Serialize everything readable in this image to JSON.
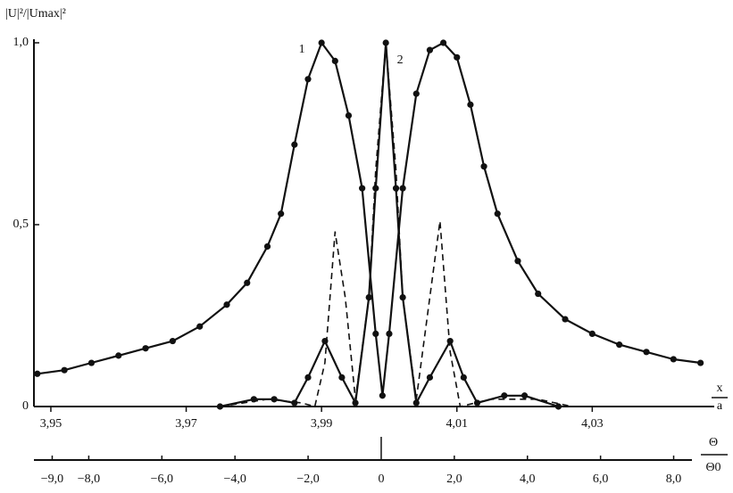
{
  "chart_data": {
    "type": "line",
    "y_label": "|U|²/|Umax|²",
    "x_label_num": "x",
    "x_label_den": "a",
    "x2_label_num": "Θ",
    "x2_label_den": "Θ0",
    "xlim": [
      3.9475,
      4.0475
    ],
    "xticks": [
      {
        "value": 3.95,
        "label": "3,95"
      },
      {
        "value": 3.97,
        "label": "3,97"
      },
      {
        "value": 3.99,
        "label": "3,99"
      },
      {
        "value": 4.01,
        "label": "4,01"
      },
      {
        "value": 4.03,
        "label": "4,03"
      }
    ],
    "ylim": [
      0,
      1.0
    ],
    "yticks": [
      0,
      {
        "value": 0.5,
        "label": "0,5"
      },
      {
        "value": 1.0,
        "label": "1,0"
      }
    ],
    "x2lim": [
      -9.5,
      8.5
    ],
    "x2ticks": [
      {
        "value": -9,
        "label": "−9,0"
      },
      {
        "value": -8,
        "label": "−8,0"
      },
      {
        "value": -6,
        "label": "−6,0"
      },
      {
        "value": -4,
        "label": "−4,0"
      },
      {
        "value": -2,
        "label": "−2,0"
      },
      0,
      {
        "value": 2,
        "label": "2,0"
      },
      {
        "value": 4,
        "label": "4,0"
      },
      {
        "value": 6,
        "label": "6,0"
      },
      {
        "value": 8,
        "label": "8,0"
      }
    ],
    "grid": false,
    "series": [
      {
        "name": "1",
        "color": "#111",
        "dash": false,
        "markers": true,
        "x": [
          3.948,
          3.952,
          3.956,
          3.96,
          3.964,
          3.968,
          3.972,
          3.976,
          3.979,
          3.982,
          3.984,
          3.986,
          3.988,
          3.99,
          3.992,
          3.994,
          3.996,
          3.998,
          3.999,
          4.0,
          4.002,
          4.004,
          4.006,
          4.008,
          4.01,
          4.012,
          4.014,
          4.016,
          4.019,
          4.022,
          4.026,
          4.03,
          4.034,
          4.038,
          4.042,
          4.046
        ],
        "values": [
          0.09,
          0.1,
          0.12,
          0.14,
          0.16,
          0.18,
          0.22,
          0.28,
          0.34,
          0.44,
          0.53,
          0.72,
          0.9,
          1.0,
          0.95,
          0.8,
          0.6,
          0.2,
          0.03,
          0.2,
          0.6,
          0.86,
          0.98,
          1.0,
          0.96,
          0.83,
          0.66,
          0.53,
          0.4,
          0.31,
          0.24,
          0.2,
          0.17,
          0.15,
          0.13,
          0.12
        ]
      },
      {
        "name": "2",
        "color": "#111",
        "dash": false,
        "markers": true,
        "x": [
          3.975,
          3.98,
          3.983,
          3.986,
          3.988,
          3.9905,
          3.993,
          3.995,
          3.997,
          3.998,
          3.9995,
          4.001,
          4.002,
          4.004,
          4.006,
          4.009,
          4.011,
          4.013,
          4.017,
          4.02,
          4.025
        ],
        "values": [
          0.0,
          0.02,
          0.02,
          0.01,
          0.08,
          0.18,
          0.08,
          0.01,
          0.3,
          0.6,
          1.0,
          0.6,
          0.3,
          0.01,
          0.08,
          0.18,
          0.08,
          0.01,
          0.03,
          0.03,
          0.0
        ]
      },
      {
        "color": "#111",
        "dash": true,
        "markers": false,
        "x": [
          3.975,
          3.982,
          3.987,
          3.989,
          3.9905,
          3.992,
          3.9935,
          3.995,
          3.997,
          3.998,
          3.9995,
          4.001,
          4.002,
          4.004,
          4.006,
          4.0075,
          4.009,
          4.0105,
          4.015,
          4.022,
          4.027
        ],
        "values": [
          0.0,
          0.02,
          0.01,
          0.0,
          0.12,
          0.48,
          0.3,
          0.02,
          0.3,
          0.65,
          1.0,
          0.65,
          0.3,
          0.02,
          0.3,
          0.51,
          0.15,
          0.0,
          0.02,
          0.02,
          0.0
        ]
      }
    ]
  }
}
